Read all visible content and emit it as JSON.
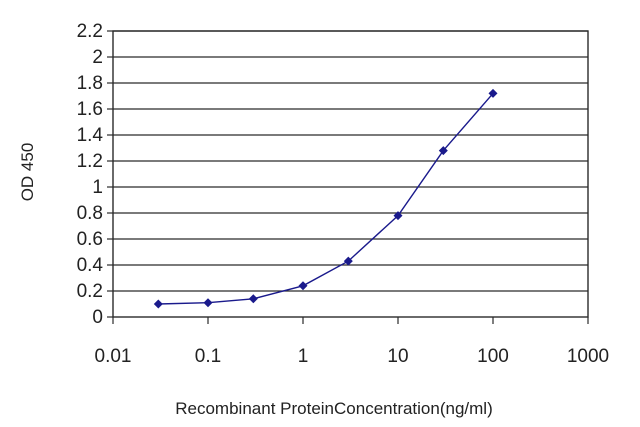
{
  "chart_data": {
    "type": "line",
    "title": "",
    "xlabel": "Recombinant ProteinConcentration(ng/ml)",
    "ylabel": "OD 450",
    "x_scale": "log",
    "xlim": [
      0.01,
      1000
    ],
    "ylim": [
      0,
      2.2
    ],
    "x_ticks": [
      "0.01",
      "0.1",
      "1",
      "10",
      "100",
      "1000"
    ],
    "y_ticks": [
      "0",
      "0.2",
      "0.4",
      "0.6",
      "0.8",
      "1",
      "1.2",
      "1.4",
      "1.6",
      "1.8",
      "2",
      "2.2"
    ],
    "grid": "horizontal",
    "series": [
      {
        "x": [
          0.03,
          0.1,
          0.3,
          1,
          3,
          10,
          30,
          100
        ],
        "y": [
          0.1,
          0.11,
          0.14,
          0.24,
          0.43,
          0.78,
          1.28,
          1.72
        ]
      }
    ],
    "colors": {
      "series": "#1a1a8c",
      "grid": "#2a2a2a",
      "frame": "#2a2a2a"
    }
  }
}
